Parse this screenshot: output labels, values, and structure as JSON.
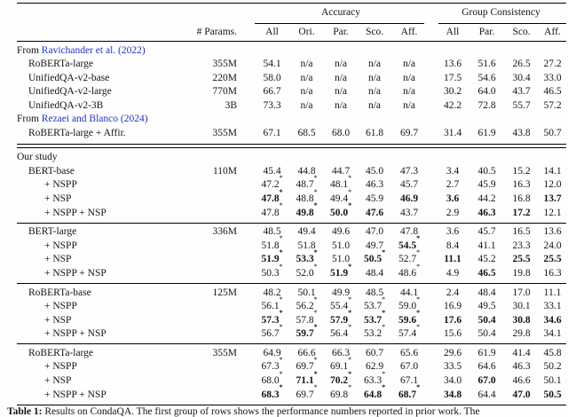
{
  "page": {
    "background": "#fefefe",
    "link_color": "#2433c0"
  },
  "header": {
    "accuracy_label": "Accuracy",
    "group_consistency_label": "Group Consistency",
    "params_label": "# Params.",
    "acc_cols": [
      "All",
      "Ori.",
      "Par.",
      "Sco.",
      "Aff."
    ],
    "gc_cols": [
      "All",
      "Par.",
      "Sco.",
      "Aff."
    ]
  },
  "cell_encoding": {
    "bold_prefix": "!",
    "significance_suffix": "*"
  },
  "blocks": [
    {
      "rule_after": "double",
      "rows": [
        {
          "type": "heading",
          "prefix": "From ",
          "link": "Ravichander et al. (2022)"
        },
        {
          "type": "data",
          "label": "RoBERTa-large",
          "indent": 1,
          "params": "355M",
          "acc": [
            "54.1",
            "n/a",
            "n/a",
            "n/a",
            "n/a"
          ],
          "gc": [
            "13.6",
            "51.6",
            "26.5",
            "27.2"
          ]
        },
        {
          "type": "data",
          "label": "UnifiedQA-v2-base",
          "indent": 1,
          "params": "220M",
          "acc": [
            "58.0",
            "n/a",
            "n/a",
            "n/a",
            "n/a"
          ],
          "gc": [
            "17.5",
            "54.6",
            "30.4",
            "33.0"
          ]
        },
        {
          "type": "data",
          "label": "UnifiedQA-v2-large",
          "indent": 1,
          "params": "770M",
          "acc": [
            "66.7",
            "n/a",
            "n/a",
            "n/a",
            "n/a"
          ],
          "gc": [
            "30.2",
            "64.0",
            "43.7",
            "46.5"
          ]
        },
        {
          "type": "data",
          "label": "UnifiedQA-v2-3B",
          "indent": 1,
          "params": "3B",
          "acc": [
            "73.3",
            "n/a",
            "n/a",
            "n/a",
            "n/a"
          ],
          "gc": [
            "42.2",
            "72.8",
            "55.7",
            "57.2"
          ]
        },
        {
          "type": "heading",
          "prefix": "From ",
          "link": "Rezaei and Blanco (2024)"
        },
        {
          "type": "data",
          "label": "RoBERTa-large + Affir.",
          "indent": 1,
          "params": "355M",
          "acc": [
            "67.1",
            "68.5",
            "68.0",
            "61.8",
            "69.7"
          ],
          "gc": [
            "31.4",
            "61.9",
            "43.8",
            "50.7"
          ]
        }
      ]
    },
    {
      "rule_after": "thin",
      "rows": [
        {
          "type": "heading",
          "prefix": "Our study",
          "link": ""
        },
        {
          "type": "data",
          "label": "BERT-base",
          "indent": 1,
          "params": "110M",
          "acc": [
            "45.4",
            "44.8",
            "44.7",
            "45.0",
            "47.3"
          ],
          "gc": [
            "3.4",
            "40.5",
            "15.2",
            "14.1"
          ]
        },
        {
          "type": "data",
          "label": "+ NSPP",
          "indent": 2,
          "params": "",
          "acc": [
            "47.2*",
            "48.7*",
            "48.1*",
            "46.3",
            "45.7"
          ],
          "gc": [
            "2.7",
            "45.9",
            "16.3",
            "12.0"
          ]
        },
        {
          "type": "data",
          "label": "+ NSP",
          "indent": 2,
          "params": "",
          "acc": [
            "!47.8*",
            "48.8*",
            "49.4*",
            "45.9",
            "!46.9"
          ],
          "gc": [
            "!3.6",
            "44.2",
            "16.8",
            "!13.7"
          ]
        },
        {
          "type": "data",
          "label": "+ NSPP + NSP",
          "indent": 2,
          "params": "",
          "acc": [
            "47.8*",
            "!49.8*",
            "!50.0*",
            "!47.6",
            "43.7"
          ],
          "gc": [
            "2.9",
            "!46.3",
            "!17.2",
            "12.1"
          ]
        }
      ]
    },
    {
      "rule_after": "thin",
      "rows": [
        {
          "type": "data",
          "label": "BERT-large",
          "indent": 1,
          "params": "336M",
          "acc": [
            "48.5",
            "49.4",
            "49.6",
            "47.0",
            "47.8"
          ],
          "gc": [
            "3.6",
            "45.7",
            "16.5",
            "13.6"
          ]
        },
        {
          "type": "data",
          "label": "+ NSPP",
          "indent": 2,
          "params": "",
          "acc": [
            "51.8*",
            "51.8",
            "51.0",
            "49.7",
            "!54.5*"
          ],
          "gc": [
            "8.4",
            "41.1",
            "23.3",
            "24.0"
          ]
        },
        {
          "type": "data",
          "label": "+ NSP",
          "indent": 2,
          "params": "",
          "acc": [
            "!51.9*",
            "!53.3*",
            "51.0",
            "!50.5*",
            "52.7*"
          ],
          "gc": [
            "!11.1",
            "45.2",
            "!25.5",
            "!25.5"
          ]
        },
        {
          "type": "data",
          "label": "+ NSPP + NSP",
          "indent": 2,
          "params": "",
          "acc": [
            "50.3*",
            "52.0*",
            "!51.9*",
            "48.4",
            "48.6*"
          ],
          "gc": [
            "4.9",
            "!46.5",
            "19.8",
            "16.3"
          ]
        }
      ]
    },
    {
      "rule_after": "thin",
      "rows": [
        {
          "type": "data",
          "label": "RoBERTa-base",
          "indent": 1,
          "params": "125M",
          "acc": [
            "48.2",
            "50.1",
            "49.9",
            "48.5",
            "44.1"
          ],
          "gc": [
            "2.4",
            "48.4",
            "17.0",
            "11.1"
          ]
        },
        {
          "type": "data",
          "label": "+ NSPP",
          "indent": 2,
          "params": "",
          "acc": [
            "56.1*",
            "56.2*",
            "55.4*",
            "53.7*",
            "59.0*"
          ],
          "gc": [
            "16.9",
            "49.5",
            "30.1",
            "33.1"
          ]
        },
        {
          "type": "data",
          "label": "+ NSP",
          "indent": 2,
          "params": "",
          "acc": [
            "!57.3*",
            "57.8*",
            "!57.9*",
            "!53.7*",
            "!59.6*"
          ],
          "gc": [
            "!17.6",
            "!50.4",
            "!30.8",
            "!34.6"
          ]
        },
        {
          "type": "data",
          "label": "+ NSPP + NSP",
          "indent": 2,
          "params": "",
          "acc": [
            "56.7*",
            "!59.7*",
            "56.4*",
            "53.2*",
            "57.4*"
          ],
          "gc": [
            "15.6",
            "50.4",
            "29.8",
            "34.1"
          ]
        }
      ]
    },
    {
      "rule_after": "heavy",
      "rows": [
        {
          "type": "data",
          "label": "RoBERTa-large",
          "indent": 1,
          "params": "355M",
          "acc": [
            "64.9",
            "66.6",
            "66.3",
            "60.7",
            "65.6"
          ],
          "gc": [
            "29.6",
            "61.9",
            "41.4",
            "45.8"
          ]
        },
        {
          "type": "data",
          "label": "+ NSPP",
          "indent": 2,
          "params": "",
          "acc": [
            "67.3*",
            "69.7*",
            "69.1*",
            "62.9",
            "67.0"
          ],
          "gc": [
            "33.5",
            "64.6",
            "46.3",
            "50.2"
          ]
        },
        {
          "type": "data",
          "label": "+ NSP",
          "indent": 2,
          "params": "",
          "acc": [
            "68.0*",
            "!71.1*",
            "!70.2*",
            "63.3*",
            "67.1"
          ],
          "gc": [
            "34.0",
            "!67.0",
            "46.6",
            "50.1"
          ]
        },
        {
          "type": "data",
          "label": "+ NSPP + NSP",
          "indent": 2,
          "params": "",
          "acc": [
            "!68.3*",
            "69.7*",
            "69.8*",
            "!64.8*",
            "!68.7*"
          ],
          "gc": [
            "!34.8",
            "64.4",
            "!47.0",
            "!50.5"
          ]
        }
      ]
    }
  ],
  "caption": {
    "label": "Table 1:",
    "text": "Results on CondaQA. The first group of rows shows the performance numbers reported in prior work. The"
  }
}
